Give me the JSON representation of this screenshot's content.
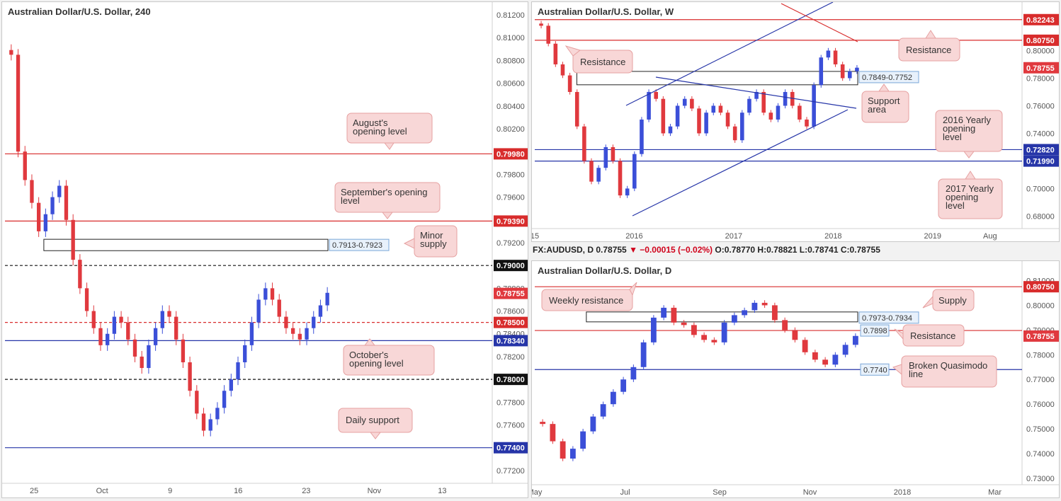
{
  "status_bar": {
    "symbol": "FX:AUDUSD, D",
    "last": "0.78755",
    "change": "▼ −0.00015 (−0.02%)",
    "ohlc": "O:0.78770 H:0.78821 L:0.78741 C:0.78755"
  },
  "colors": {
    "up": "#3b4fd8",
    "down": "#e0393e",
    "resistance": "#d82c2c",
    "support": "#2635a8",
    "callout_bg": "#f8d7d7",
    "callout_border": "#e6a0a0"
  },
  "chart_data": [
    {
      "id": "h4",
      "type": "candlestick",
      "title": "Australian Dollar/U.S. Dollar, 240",
      "ylim": [
        0.771,
        0.8125
      ],
      "y_ticks": [
        "0.81200",
        "0.81000",
        "0.80800",
        "0.80600",
        "0.80400",
        "0.80200",
        "0.80000",
        "0.79800",
        "0.79600",
        "0.79400",
        "0.79200",
        "0.78800",
        "0.78600",
        "0.78400",
        "0.78200",
        "0.77800",
        "0.77600",
        "0.77200"
      ],
      "x_ticks": [
        "25",
        "Oct",
        "9",
        "16",
        "23",
        "Nov",
        "13"
      ],
      "x_tick_index": [
        3,
        10,
        17,
        24,
        31,
        38,
        45
      ],
      "x_range": [
        0,
        50
      ],
      "closes": [
        0.8085,
        0.8,
        0.7975,
        0.7955,
        0.793,
        0.7945,
        0.796,
        0.797,
        0.794,
        0.7905,
        0.788,
        0.786,
        0.7845,
        0.783,
        0.784,
        0.7855,
        0.785,
        0.7835,
        0.782,
        0.781,
        0.783,
        0.7845,
        0.786,
        0.7855,
        0.7835,
        0.7815,
        0.779,
        0.777,
        0.7755,
        0.7765,
        0.7775,
        0.779,
        0.78,
        0.7815,
        0.783,
        0.785,
        0.787,
        0.788,
        0.787,
        0.7855,
        0.7845,
        0.784,
        0.7835,
        0.7845,
        0.7855,
        0.7865,
        0.7876
      ],
      "levels": [
        {
          "label": "0.79980",
          "value": 0.7998,
          "color": "#d82c2c",
          "style": "solid"
        },
        {
          "label": "0.79390",
          "value": 0.7939,
          "color": "#d82c2c",
          "style": "solid"
        },
        {
          "label": "0.79000",
          "value": 0.79,
          "color": "#111111",
          "style": "dashed"
        },
        {
          "label": "0.78500",
          "value": 0.785,
          "color": "#d82c2c",
          "style": "dashed"
        },
        {
          "label": "0.78340",
          "value": 0.7834,
          "color": "#2635a8",
          "style": "solid"
        },
        {
          "label": "0.78000",
          "value": 0.78,
          "color": "#111111",
          "style": "dashed"
        },
        {
          "label": "0.77400",
          "value": 0.774,
          "color": "#2635a8",
          "style": "solid"
        }
      ],
      "price_tag": {
        "label": "0.78755",
        "value": 0.78755,
        "color": "#e0393e"
      },
      "zones": [
        {
          "label": "0.7913-0.7923",
          "hi": 0.7923,
          "lo": 0.7913,
          "from": 4
        }
      ],
      "annotations": [
        "August's opening level",
        "September's opening level",
        "Minor supply",
        "October's opening level",
        "Daily support"
      ]
    },
    {
      "id": "weekly",
      "type": "candlestick",
      "title": "Australian Dollar/U.S. Dollar, W",
      "ylim": [
        0.672,
        0.83
      ],
      "y_ticks": [
        "0.80000",
        "0.78000",
        "0.76000",
        "0.74000",
        "0.70000",
        "0.68000"
      ],
      "x_ticks": [
        "15",
        "2016",
        "2017",
        "2018",
        "2019",
        "Aug"
      ],
      "x_tick_index": [
        0,
        52,
        104,
        156,
        208,
        238
      ],
      "x_range": [
        0,
        254
      ],
      "closes": [
        0.818,
        0.805,
        0.79,
        0.782,
        0.77,
        0.745,
        0.72,
        0.705,
        0.715,
        0.73,
        0.72,
        0.695,
        0.7,
        0.725,
        0.75,
        0.77,
        0.765,
        0.74,
        0.745,
        0.76,
        0.765,
        0.758,
        0.74,
        0.755,
        0.76,
        0.755,
        0.745,
        0.735,
        0.755,
        0.765,
        0.77,
        0.755,
        0.75,
        0.76,
        0.77,
        0.76,
        0.75,
        0.745,
        0.775,
        0.795,
        0.8,
        0.79,
        0.78,
        0.785,
        0.7876
      ],
      "levels": [
        {
          "label": "0.82243",
          "value": 0.82243,
          "color": "#d82c2c",
          "style": "solid"
        },
        {
          "label": "0.80750",
          "value": 0.8075,
          "color": "#d82c2c",
          "style": "solid"
        },
        {
          "label": "0.72820",
          "value": 0.7282,
          "color": "#2635a8",
          "style": "solid"
        },
        {
          "label": "0.71990",
          "value": 0.7199,
          "color": "#2635a8",
          "style": "solid"
        }
      ],
      "price_tag": {
        "label": "0.78755",
        "value": 0.78755,
        "color": "#e0393e"
      },
      "zones": [
        {
          "label": "0.7849-0.7752",
          "hi": 0.7849,
          "lo": 0.7752,
          "from": 22
        }
      ],
      "annotations": [
        "Resistance",
        "Resistance",
        "Support area",
        "2016 Yearly opening level",
        "2017 Yearly opening level"
      ]
    },
    {
      "id": "daily",
      "type": "candlestick",
      "title": "Australian Dollar/U.S. Dollar, D",
      "ylim": [
        0.728,
        0.815
      ],
      "y_ticks": [
        "0.81000",
        "0.80000",
        "0.79000",
        "0.78000",
        "0.77000",
        "0.76000",
        "0.75000",
        "0.74000",
        "0.73000"
      ],
      "x_ticks": [
        "May",
        "Jul",
        "Sep",
        "Nov",
        "2018",
        "Mar"
      ],
      "x_tick_index": [
        0,
        42,
        86,
        128,
        171,
        214
      ],
      "x_range": [
        0,
        226
      ],
      "closes": [
        0.752,
        0.745,
        0.738,
        0.742,
        0.749,
        0.755,
        0.76,
        0.765,
        0.77,
        0.775,
        0.785,
        0.795,
        0.799,
        0.793,
        0.792,
        0.788,
        0.786,
        0.785,
        0.793,
        0.796,
        0.798,
        0.801,
        0.8,
        0.794,
        0.79,
        0.786,
        0.781,
        0.778,
        0.776,
        0.78,
        0.784,
        0.7876
      ],
      "levels": [
        {
          "label": "0.80750",
          "value": 0.8075,
          "color": "#d82c2c",
          "style": "solid"
        },
        {
          "label": "0.7898",
          "value": 0.7898,
          "color": "#d82c2c",
          "style": "solid"
        },
        {
          "label": "0.7740",
          "value": 0.774,
          "color": "#2635a8",
          "style": "solid"
        }
      ],
      "price_tag": {
        "label": "0.78755",
        "value": 0.78755,
        "color": "#e0393e"
      },
      "zones": [
        {
          "label": "0.7973-0.7934",
          "hi": 0.7973,
          "lo": 0.7934,
          "from": 24
        }
      ],
      "annotations": [
        "Weekly resistance",
        "Supply",
        "Resistance",
        "Broken Quasimodo line"
      ]
    }
  ]
}
